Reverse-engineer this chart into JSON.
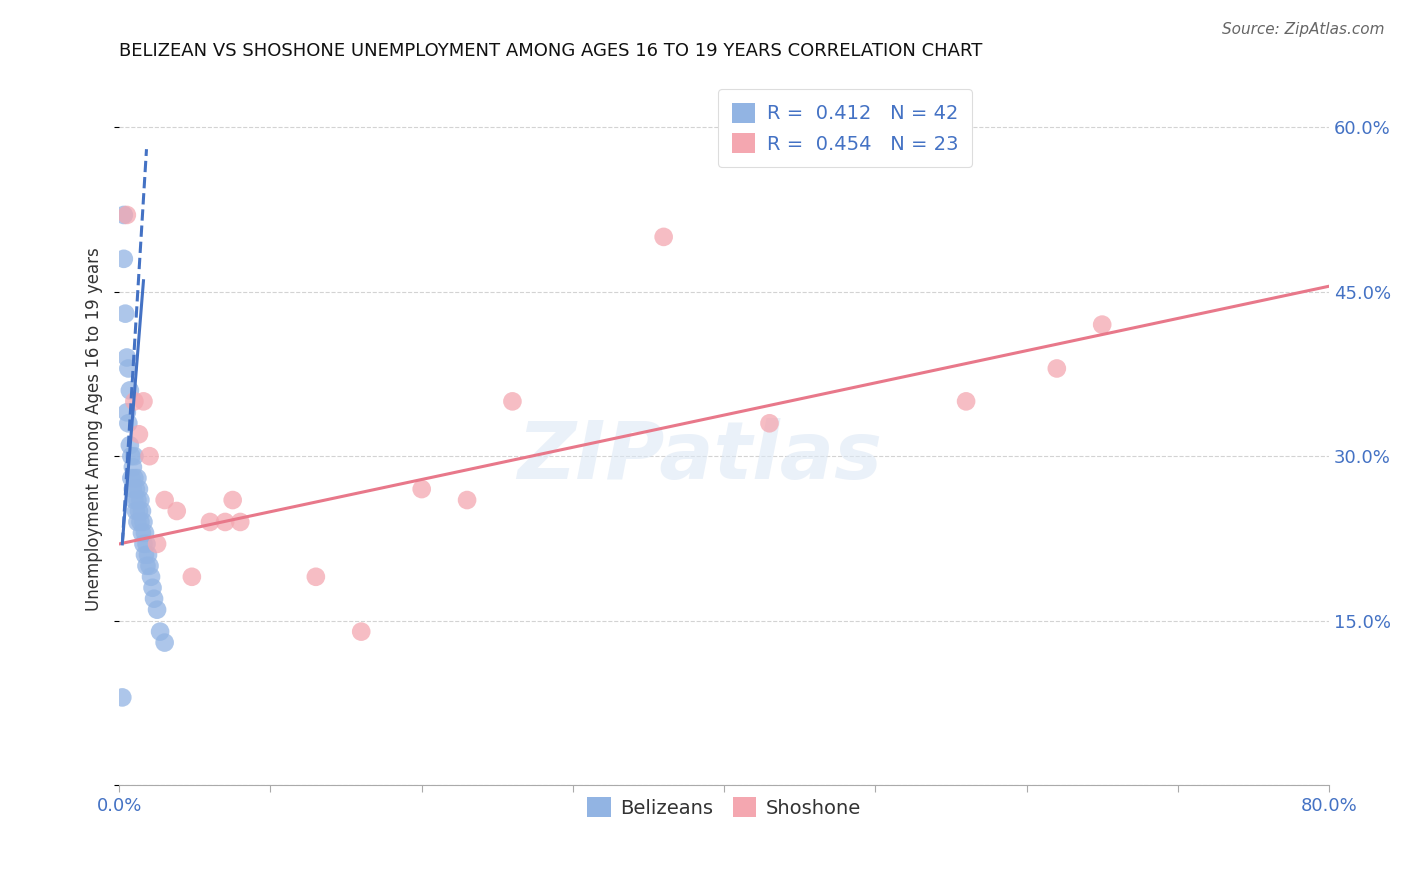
{
  "title": "BELIZEAN VS SHOSHONE UNEMPLOYMENT AMONG AGES 16 TO 19 YEARS CORRELATION CHART",
  "source_text": "Source: ZipAtlas.com",
  "ylabel": "Unemployment Among Ages 16 to 19 years",
  "xlim": [
    0.0,
    0.8
  ],
  "ylim": [
    0.0,
    0.65
  ],
  "xticks": [
    0.0,
    0.1,
    0.2,
    0.3,
    0.4,
    0.5,
    0.6,
    0.7,
    0.8
  ],
  "xticklabels": [
    "0.0%",
    "",
    "",
    "",
    "",
    "",
    "",
    "",
    "80.0%"
  ],
  "yticks": [
    0.0,
    0.15,
    0.3,
    0.45,
    0.6
  ],
  "yticklabels": [
    "",
    "15.0%",
    "30.0%",
    "45.0%",
    "60.0%"
  ],
  "belizean_color": "#92b4e3",
  "belizean_edge": "#6090cc",
  "shoshone_color": "#f4a7b0",
  "shoshone_edge": "#e08090",
  "belizean_R": 0.412,
  "belizean_N": 42,
  "shoshone_R": 0.454,
  "shoshone_N": 23,
  "belizean_x": [
    0.002,
    0.003,
    0.003,
    0.004,
    0.005,
    0.005,
    0.006,
    0.006,
    0.007,
    0.007,
    0.008,
    0.008,
    0.009,
    0.009,
    0.01,
    0.01,
    0.01,
    0.011,
    0.011,
    0.012,
    0.012,
    0.012,
    0.013,
    0.013,
    0.014,
    0.014,
    0.015,
    0.015,
    0.016,
    0.016,
    0.017,
    0.017,
    0.018,
    0.018,
    0.019,
    0.02,
    0.021,
    0.022,
    0.023,
    0.025,
    0.027,
    0.03
  ],
  "belizean_y": [
    0.08,
    0.52,
    0.48,
    0.43,
    0.39,
    0.34,
    0.38,
    0.33,
    0.36,
    0.31,
    0.3,
    0.28,
    0.29,
    0.27,
    0.3,
    0.28,
    0.26,
    0.27,
    0.25,
    0.28,
    0.26,
    0.24,
    0.27,
    0.25,
    0.26,
    0.24,
    0.25,
    0.23,
    0.24,
    0.22,
    0.23,
    0.21,
    0.22,
    0.2,
    0.21,
    0.2,
    0.19,
    0.18,
    0.17,
    0.16,
    0.14,
    0.13
  ],
  "shoshone_x": [
    0.005,
    0.01,
    0.013,
    0.016,
    0.02,
    0.025,
    0.03,
    0.038,
    0.048,
    0.06,
    0.07,
    0.075,
    0.08,
    0.13,
    0.16,
    0.2,
    0.23,
    0.26,
    0.36,
    0.43,
    0.56,
    0.62,
    0.65
  ],
  "shoshone_y": [
    0.52,
    0.35,
    0.32,
    0.35,
    0.3,
    0.22,
    0.26,
    0.25,
    0.19,
    0.24,
    0.24,
    0.26,
    0.24,
    0.19,
    0.14,
    0.27,
    0.26,
    0.35,
    0.5,
    0.33,
    0.35,
    0.38,
    0.42
  ],
  "bel_trend_x": [
    0.002,
    0.018
  ],
  "bel_trend_y": [
    0.22,
    0.58
  ],
  "sho_trend_x": [
    0.0,
    0.8
  ],
  "sho_trend_y": [
    0.22,
    0.455
  ],
  "watermark_text": "ZIPatlas",
  "grid_color": "#c8c8c8",
  "background_color": "#ffffff",
  "title_fontsize": 13,
  "tick_fontsize": 13,
  "legend_fontsize": 14,
  "ylabel_fontsize": 12
}
